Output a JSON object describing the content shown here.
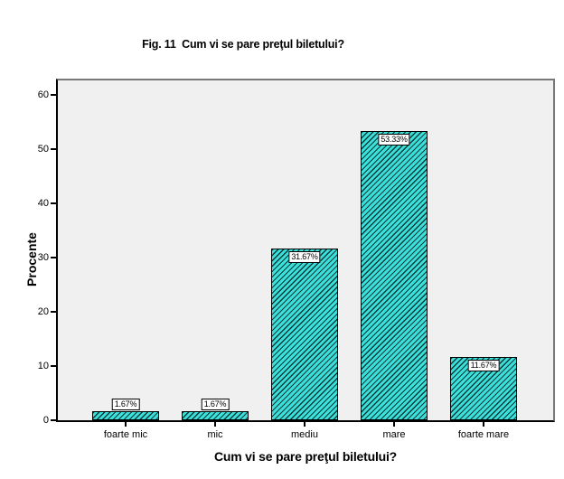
{
  "figure_caption": "Fig. 11  Cum vi se pare preţul biletului?",
  "chart_data": {
    "type": "bar",
    "title": "Fig. 11  Cum vi se pare preţul biletului?",
    "categories": [
      "foarte mic",
      "mic",
      "mediu",
      "mare",
      "foarte mare"
    ],
    "values": [
      1.67,
      1.67,
      31.67,
      53.33,
      11.67
    ],
    "bar_labels": [
      "1.67%",
      "1.67%",
      "31.67%",
      "53.33%",
      "11.67%"
    ],
    "xlabel": "Cum vi se pare preţul biletului?",
    "ylabel": "Procente",
    "yticks": [
      0,
      10,
      20,
      30,
      40,
      50,
      60
    ],
    "ylim": [
      0,
      63
    ],
    "grid": false,
    "legend": null,
    "bar_color": "#3CE0DA",
    "hatch": "diagonal-forward",
    "hatch_color": "#0A3A3A",
    "bar_border_color": "#000000",
    "plot_background": "#F0F0F0",
    "frame_color": "#787878",
    "axis_color": "#000000"
  }
}
